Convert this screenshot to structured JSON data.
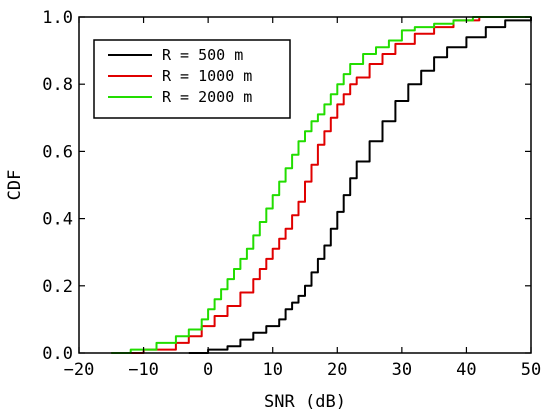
{
  "chart_data": {
    "type": "line",
    "xlabel": "SNR (dB)",
    "ylabel": "CDF",
    "xlim": [
      -20,
      50
    ],
    "ylim": [
      0,
      1
    ],
    "xticks": [
      "−20",
      "−10",
      "0",
      "10",
      "20",
      "30",
      "40",
      "50"
    ],
    "yticks": [
      "0.0",
      "0.2",
      "0.4",
      "0.6",
      "0.8",
      "1.0"
    ],
    "grid": false,
    "legend_position": "top-left",
    "series": [
      {
        "name": "R = 500 m",
        "color": "#000000",
        "x": [
          -3,
          0,
          3,
          5,
          7,
          9,
          11,
          12,
          13,
          14,
          15,
          16,
          17,
          18,
          19,
          20,
          21,
          22,
          23,
          25,
          27,
          29,
          31,
          33,
          35,
          37,
          40,
          43,
          46,
          50
        ],
        "y": [
          0.0,
          0.01,
          0.02,
          0.04,
          0.06,
          0.08,
          0.1,
          0.13,
          0.15,
          0.17,
          0.2,
          0.24,
          0.28,
          0.32,
          0.37,
          0.42,
          0.47,
          0.52,
          0.57,
          0.63,
          0.69,
          0.75,
          0.8,
          0.84,
          0.88,
          0.91,
          0.94,
          0.97,
          0.99,
          1.0
        ]
      },
      {
        "name": "R = 1000 m",
        "color": "#e00000",
        "x": [
          -15,
          -10,
          -5,
          -3,
          -1,
          1,
          3,
          5,
          7,
          8,
          9,
          10,
          11,
          12,
          13,
          14,
          15,
          16,
          17,
          18,
          19,
          20,
          21,
          22,
          23,
          25,
          27,
          29,
          32,
          35,
          38,
          42
        ],
        "y": [
          0.0,
          0.01,
          0.03,
          0.05,
          0.08,
          0.11,
          0.14,
          0.18,
          0.22,
          0.25,
          0.28,
          0.31,
          0.34,
          0.37,
          0.41,
          0.45,
          0.51,
          0.56,
          0.62,
          0.66,
          0.7,
          0.74,
          0.77,
          0.8,
          0.82,
          0.86,
          0.89,
          0.92,
          0.95,
          0.97,
          0.99,
          1.0
        ]
      },
      {
        "name": "R = 2000 m",
        "color": "#22dd00",
        "x": [
          -15,
          -12,
          -8,
          -5,
          -3,
          -1,
          0,
          1,
          2,
          3,
          4,
          5,
          6,
          7,
          8,
          9,
          10,
          11,
          12,
          13,
          14,
          15,
          16,
          17,
          18,
          19,
          20,
          21,
          22,
          24,
          26,
          28,
          30,
          32,
          35,
          38,
          41,
          50
        ],
        "y": [
          0.0,
          0.01,
          0.03,
          0.05,
          0.07,
          0.1,
          0.13,
          0.16,
          0.19,
          0.22,
          0.25,
          0.28,
          0.31,
          0.35,
          0.39,
          0.43,
          0.47,
          0.51,
          0.55,
          0.59,
          0.63,
          0.66,
          0.69,
          0.71,
          0.74,
          0.77,
          0.8,
          0.83,
          0.86,
          0.89,
          0.91,
          0.93,
          0.96,
          0.97,
          0.98,
          0.99,
          1.0,
          1.0
        ]
      }
    ]
  }
}
